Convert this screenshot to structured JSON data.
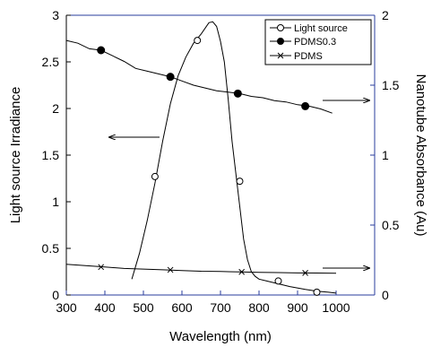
{
  "chart_data": {
    "type": "line",
    "title": "",
    "xlabel": "Wavelength (nm)",
    "ylabel_left": "Light source Irradiance",
    "ylabel_right": "Nanotube Absorbance (Au)",
    "xlim": [
      300,
      1100
    ],
    "ylim_left": [
      0,
      3
    ],
    "ylim_right": [
      0,
      2
    ],
    "xticks": [
      "300",
      "400",
      "500",
      "600",
      "700",
      "800",
      "900",
      "1000"
    ],
    "yticks_left": [
      "0",
      "0.5",
      "1",
      "1.5",
      "2",
      "2.5",
      "3"
    ],
    "yticks_right": [
      "0",
      "0.5",
      "1",
      "1.5",
      "2"
    ],
    "grid": false,
    "legend_position": "top-right",
    "series": [
      {
        "name": "Light source",
        "axis": "left",
        "marker": "open-circle",
        "x": [
          470,
          490,
          510,
          530,
          550,
          570,
          590,
          610,
          630,
          650,
          670,
          680,
          690,
          700,
          710,
          720,
          730,
          740,
          750,
          760,
          770,
          780,
          790,
          800,
          820,
          850,
          880,
          920,
          950,
          980,
          1000
        ],
        "y": [
          0.17,
          0.45,
          0.8,
          1.2,
          1.65,
          2.05,
          2.35,
          2.55,
          2.7,
          2.8,
          2.92,
          2.93,
          2.88,
          2.72,
          2.5,
          2.1,
          1.65,
          1.3,
          0.95,
          0.6,
          0.38,
          0.25,
          0.2,
          0.17,
          0.15,
          0.12,
          0.09,
          0.06,
          0.04,
          0.03,
          0.02
        ],
        "marker_x": [
          530,
          640,
          750,
          850,
          950
        ],
        "marker_y": [
          1.27,
          2.73,
          1.22,
          0.15,
          0.03
        ]
      },
      {
        "name": "PDMS0.3",
        "axis": "right",
        "marker": "filled-circle",
        "x": [
          300,
          330,
          360,
          390,
          420,
          450,
          480,
          510,
          540,
          570,
          600,
          630,
          660,
          690,
          720,
          750,
          780,
          810,
          840,
          870,
          900,
          930,
          960,
          990
        ],
        "y": [
          1.82,
          1.8,
          1.76,
          1.75,
          1.71,
          1.67,
          1.62,
          1.6,
          1.58,
          1.56,
          1.53,
          1.5,
          1.48,
          1.46,
          1.45,
          1.44,
          1.42,
          1.41,
          1.39,
          1.38,
          1.36,
          1.35,
          1.33,
          1.3
        ],
        "marker_x": [
          390,
          570,
          745,
          920
        ],
        "marker_y": [
          1.75,
          1.56,
          1.44,
          1.35
        ]
      },
      {
        "name": "PDMS",
        "axis": "right",
        "marker": "cross",
        "x": [
          300,
          350,
          400,
          450,
          500,
          550,
          600,
          650,
          700,
          750,
          800,
          850,
          900,
          950,
          1000
        ],
        "y": [
          0.22,
          0.21,
          0.2,
          0.19,
          0.185,
          0.18,
          0.175,
          0.17,
          0.168,
          0.165,
          0.162,
          0.16,
          0.158,
          0.157,
          0.155
        ],
        "marker_x": [
          390,
          570,
          755,
          920
        ],
        "marker_y": [
          0.2,
          0.18,
          0.165,
          0.158
        ]
      }
    ],
    "annotations": [
      {
        "type": "arrow",
        "direction": "left",
        "target_axis": "left"
      },
      {
        "type": "arrow",
        "direction": "right",
        "target_axis": "right"
      },
      {
        "type": "arrow",
        "direction": "right",
        "target_axis": "right"
      }
    ]
  }
}
